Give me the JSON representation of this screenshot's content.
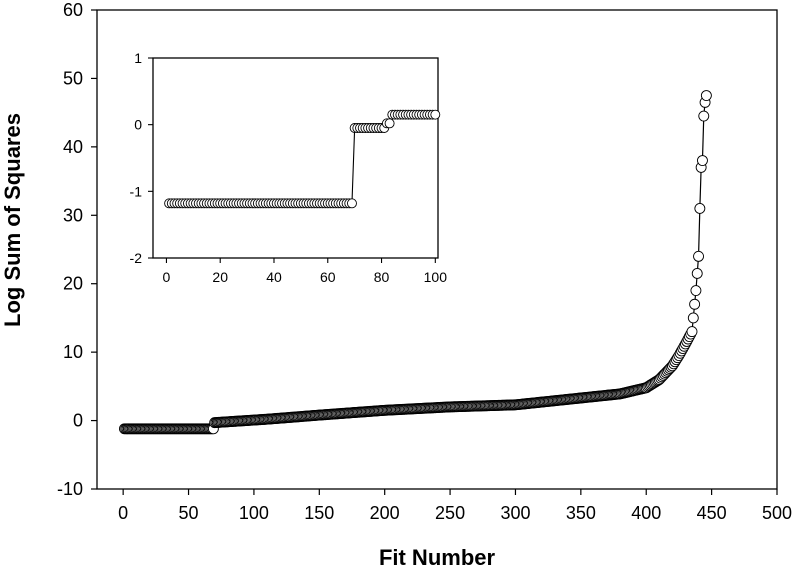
{
  "chart_data": [
    {
      "type": "line",
      "role": "main",
      "title": "",
      "xlabel": "Fit Number",
      "ylabel": "Log Sum of Squares",
      "xlim": [
        -20,
        500
      ],
      "ylim": [
        -10,
        60
      ],
      "xticks": [
        0,
        50,
        100,
        150,
        200,
        250,
        300,
        350,
        400,
        450,
        500
      ],
      "yticks": [
        -10,
        0,
        10,
        20,
        30,
        40,
        50,
        60
      ],
      "x_tick_labels": [
        "0",
        "50",
        "100",
        "150",
        "200",
        "250",
        "300",
        "350",
        "400",
        "450",
        "500"
      ],
      "y_tick_labels": [
        "-10",
        "0",
        "10",
        "20",
        "30",
        "40",
        "50",
        "60"
      ],
      "series": [
        {
          "markers": "open-circle",
          "line": true,
          "profile_x": [
            1,
            69,
            70,
            110,
            150,
            200,
            250,
            300,
            350,
            380,
            400,
            410,
            420,
            425,
            430,
            435,
            437,
            438,
            439,
            440,
            441,
            442,
            443,
            444,
            445,
            446
          ],
          "profile_y": [
            -1.2,
            -1.2,
            -0.3,
            0.2,
            0.8,
            1.5,
            2.0,
            2.3,
            3.3,
            3.9,
            4.8,
            6.0,
            8.0,
            9.5,
            11.2,
            13.0,
            17.0,
            19.0,
            21.5,
            24.0,
            31.0,
            37.0,
            38.0,
            44.5,
            46.5,
            47.5
          ]
        }
      ]
    },
    {
      "type": "line",
      "role": "inset",
      "title": "",
      "xlabel": "",
      "ylabel": "",
      "xlim": [
        -5,
        101
      ],
      "ylim": [
        -2,
        1
      ],
      "xticks": [
        0,
        20,
        40,
        60,
        80,
        100
      ],
      "yticks": [
        -2,
        -1,
        0,
        1
      ],
      "x_tick_labels": [
        "0",
        "20",
        "40",
        "60",
        "80",
        "100"
      ],
      "y_tick_labels": [
        "-2",
        "-1",
        "0",
        "1"
      ],
      "series": [
        {
          "markers": "open-circle",
          "line": true,
          "segments": [
            {
              "x": [
                1,
                69
              ],
              "y": -1.18
            },
            {
              "x": [
                70,
                81
              ],
              "y": -0.05
            },
            {
              "x": [
                82,
                83
              ],
              "y": 0.02
            },
            {
              "x": [
                84,
                100
              ],
              "y": 0.15
            }
          ]
        }
      ]
    }
  ]
}
